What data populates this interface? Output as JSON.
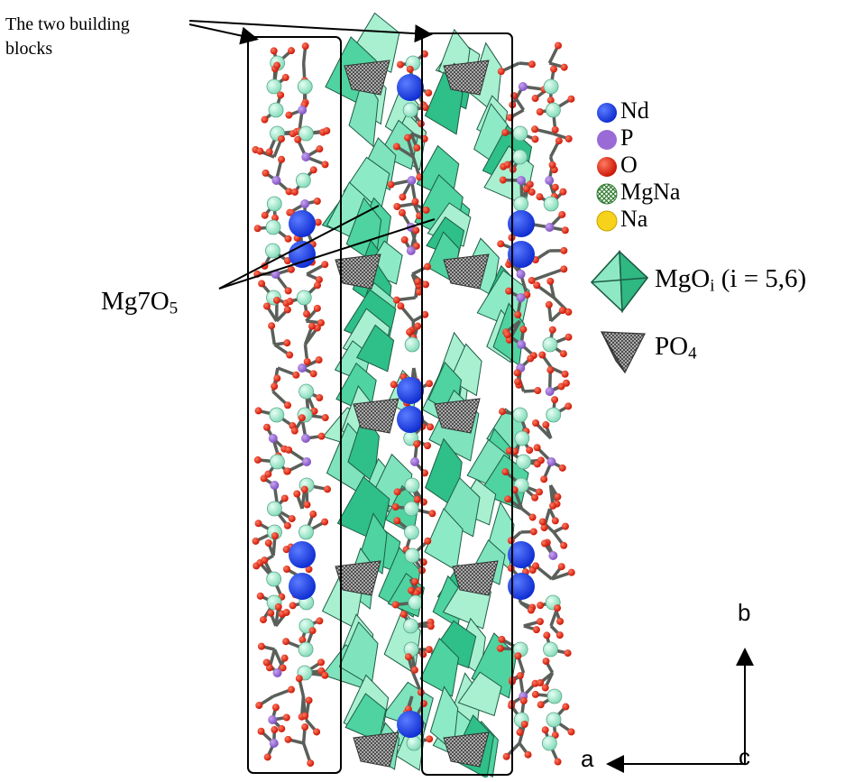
{
  "annotation_top": {
    "line1": "The two building",
    "line2": "blocks"
  },
  "annotation_mg": {
    "base": "Mg7O",
    "sub": "5"
  },
  "legend": {
    "atoms": [
      {
        "label": "Nd",
        "color": "#1a3fe0"
      },
      {
        "label": "P",
        "color": "#9a6ad6"
      },
      {
        "label": "O",
        "color": "#e8200e"
      },
      {
        "label": "MgNa",
        "color": "#3ca83c",
        "pattern": "crosshatch"
      },
      {
        "label": "Na",
        "color": "#f6d21a"
      }
    ],
    "polyhedra": [
      {
        "prefix": "MgO",
        "sub": "i",
        "suffix": " (i = 5,6)",
        "color": "#4fd3a0",
        "icon": "octahedron-icon"
      },
      {
        "prefix": "PO",
        "sub": "4",
        "suffix": "",
        "color": "#9a9a9a",
        "icon": "tetrahedron-icon"
      }
    ]
  },
  "axes": {
    "a": "a",
    "b": "b",
    "c": "c"
  },
  "colors": {
    "nd": "#1a3fe0",
    "p": "#9a6ad6",
    "o": "#e8200e",
    "mg_na": "#3ca83c",
    "na": "#f6d21a",
    "mg_polyhedron": "#4fd3a0",
    "mg_polyhedron_light": "#a8f0d0",
    "mg_atom": "#a8ecd4",
    "bond": "#5a5f5a",
    "po4": "#9a9a9a"
  }
}
